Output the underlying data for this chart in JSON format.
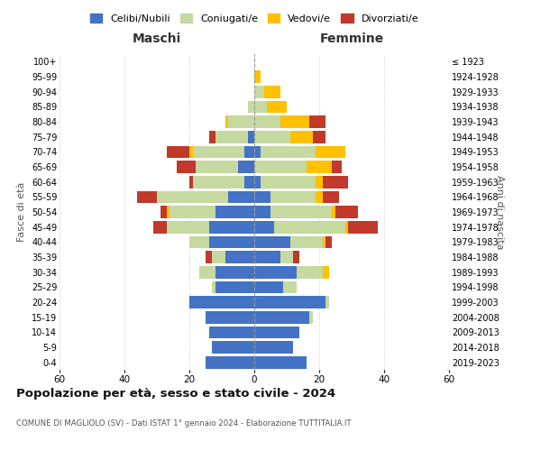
{
  "age_groups": [
    "0-4",
    "5-9",
    "10-14",
    "15-19",
    "20-24",
    "25-29",
    "30-34",
    "35-39",
    "40-44",
    "45-49",
    "50-54",
    "55-59",
    "60-64",
    "65-69",
    "70-74",
    "75-79",
    "80-84",
    "85-89",
    "90-94",
    "95-99",
    "100+"
  ],
  "birth_years": [
    "2019-2023",
    "2014-2018",
    "2009-2013",
    "2004-2008",
    "1999-2003",
    "1994-1998",
    "1989-1993",
    "1984-1988",
    "1979-1983",
    "1974-1978",
    "1969-1973",
    "1964-1968",
    "1959-1963",
    "1954-1958",
    "1949-1953",
    "1944-1948",
    "1939-1943",
    "1934-1938",
    "1929-1933",
    "1924-1928",
    "≤ 1923"
  ],
  "maschi": {
    "celibi": [
      15,
      13,
      14,
      15,
      20,
      12,
      12,
      9,
      14,
      14,
      12,
      8,
      3,
      5,
      3,
      2,
      0,
      0,
      0,
      0,
      0
    ],
    "coniugati": [
      0,
      0,
      0,
      0,
      0,
      1,
      5,
      4,
      6,
      13,
      14,
      22,
      16,
      13,
      16,
      10,
      8,
      2,
      0,
      0,
      0
    ],
    "vedovi": [
      0,
      0,
      0,
      0,
      0,
      0,
      0,
      0,
      0,
      0,
      1,
      0,
      0,
      0,
      1,
      0,
      1,
      0,
      0,
      0,
      0
    ],
    "divorziati": [
      0,
      0,
      0,
      0,
      0,
      0,
      0,
      2,
      0,
      4,
      2,
      6,
      1,
      6,
      7,
      2,
      0,
      0,
      0,
      0,
      0
    ]
  },
  "femmine": {
    "nubili": [
      16,
      12,
      14,
      17,
      22,
      9,
      13,
      8,
      11,
      6,
      5,
      5,
      2,
      0,
      2,
      0,
      0,
      0,
      0,
      0,
      0
    ],
    "coniugate": [
      0,
      0,
      0,
      1,
      1,
      4,
      8,
      4,
      10,
      22,
      19,
      14,
      17,
      16,
      17,
      11,
      8,
      4,
      3,
      0,
      0
    ],
    "vedove": [
      0,
      0,
      0,
      0,
      0,
      0,
      2,
      0,
      1,
      1,
      1,
      2,
      2,
      8,
      9,
      7,
      9,
      6,
      5,
      2,
      0
    ],
    "divorziate": [
      0,
      0,
      0,
      0,
      0,
      0,
      0,
      2,
      2,
      9,
      7,
      5,
      8,
      3,
      0,
      4,
      5,
      0,
      0,
      0,
      0
    ]
  },
  "colors": {
    "celibi": "#4472c4",
    "coniugati": "#c5d9a0",
    "vedovi": "#ffc000",
    "divorziati": "#c0392b"
  },
  "legend_labels": [
    "Celibi/Nubili",
    "Coniugati/e",
    "Vedovi/e",
    "Divorziati/e"
  ],
  "title": "Popolazione per età, sesso e stato civile - 2024",
  "subtitle": "COMUNE DI MAGLIOLO (SV) - Dati ISTAT 1° gennaio 2024 - Elaborazione TUTTITALIA.IT",
  "xlabel_left": "Maschi",
  "xlabel_right": "Femmine",
  "ylabel_left": "Fasce di età",
  "ylabel_right": "Anni di nascita",
  "xlim": 60,
  "bg_color": "#ffffff",
  "grid_color": "#cccccc"
}
